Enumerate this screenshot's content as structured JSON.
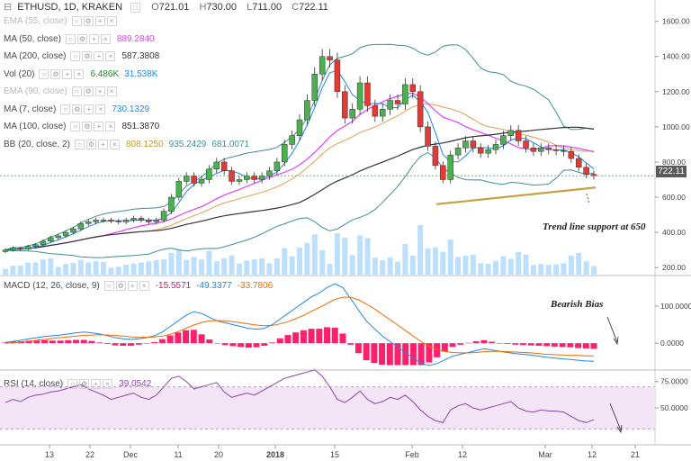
{
  "header": {
    "symbol": "ETHUSD, 1D, KRAKEN",
    "open_label": "O",
    "open": "721.01",
    "high_label": "H",
    "high": "730.00",
    "low_label": "L",
    "low": "711.00",
    "close_label": "C",
    "close": "722.11"
  },
  "legends": [
    {
      "name": "EMA (55, close)",
      "values": [],
      "dim": true
    },
    {
      "name": "MA (50, close)",
      "values": [
        "889.2840"
      ],
      "colors": [
        "#e040fb"
      ]
    },
    {
      "name": "MA (200, close)",
      "values": [
        "587.3808"
      ],
      "colors": [
        "#333333"
      ]
    },
    {
      "name": "Vol (20)",
      "values": [
        "6.486K",
        "31.538K"
      ],
      "colors": [
        "#2e7d32",
        "#1e88e5"
      ]
    },
    {
      "name": "EMA (90, close)",
      "values": [],
      "dim": true
    },
    {
      "name": "MA (7, close)",
      "values": [
        "730.1329"
      ],
      "colors": [
        "#1e88e5"
      ]
    },
    {
      "name": "MA (100, close)",
      "values": [
        "851.3870"
      ],
      "colors": [
        "#333333"
      ]
    },
    {
      "name": "BB (20, close, 2)",
      "values": [
        "808.1250",
        "935.2429",
        "681.0071"
      ],
      "colors": [
        "#c29a2f",
        "#3f8f8f",
        "#3f8f8f"
      ]
    }
  ],
  "macd_legend": {
    "name": "MACD (12, 26, close, 9)",
    "values": [
      "-15.5571",
      "-49.3377",
      "-33.7806"
    ],
    "colors": [
      "#d81b60",
      "#1e88e5",
      "#ef6c00"
    ]
  },
  "rsi_legend": {
    "name": "RSI (14, close)",
    "value": "39.0542"
  },
  "current_price_tag": "722.11",
  "annotations": {
    "trendline": "Trend line support at 650",
    "bias": "Bearish Bias"
  },
  "colors": {
    "up": "#4caf50",
    "down": "#e53935",
    "bb": "#3f8f8f",
    "ma50": "#e040fb",
    "ma200": "#333333",
    "ema": "#e0a050",
    "volume": "#90caf9",
    "macd_hist": "#ff1f6b",
    "macd": "#1e88e5",
    "signal": "#ef6c00",
    "rsi": "#8e44ad",
    "rsi_band": "#f3e5f5",
    "trendline": "#c8a040"
  },
  "chart_data": [
    {
      "type": "candlestick",
      "title": "ETHUSD, 1D, KRAKEN",
      "x_ticks": [
        "13",
        "22",
        "Dec",
        "11",
        "20",
        "2018",
        "15",
        "Feb",
        "12",
        "Mar",
        "12",
        "21"
      ],
      "y_ticks": [
        200,
        400,
        600,
        800,
        1000,
        1200,
        1400,
        1600
      ],
      "y_tick_labels": [
        "200.00",
        "400.00",
        "600.00",
        "800.00",
        "1000.00",
        "1200.00",
        "1400.00",
        "1600.00"
      ],
      "ylim": [
        160,
        1680
      ],
      "series": [
        {
          "name": "ETHUSD",
          "kind": "candles",
          "close": [
            300,
            310,
            305,
            320,
            330,
            350,
            370,
            380,
            400,
            420,
            450,
            460,
            470,
            470,
            465,
            460,
            470,
            480,
            470,
            460,
            470,
            520,
            600,
            690,
            720,
            680,
            700,
            760,
            800,
            750,
            690,
            700,
            720,
            700,
            720,
            750,
            800,
            900,
            950,
            1040,
            1150,
            1300,
            1400,
            1380,
            1200,
            1050,
            1100,
            1250,
            1120,
            1060,
            1100,
            1150,
            1130,
            1240,
            1200,
            1000,
            890,
            780,
            700,
            840,
            880,
            920,
            880,
            850,
            870,
            900,
            950,
            980,
            920,
            880,
            860,
            880,
            870,
            865,
            860,
            820,
            770,
            730,
            722
          ]
        }
      ]
    },
    {
      "type": "line",
      "title": "MACD (12, 26, close, 9)",
      "y_ticks": [
        0,
        100
      ],
      "y_tick_labels": [
        "0.0000",
        "100.0000"
      ],
      "ylim": [
        -70,
        180
      ],
      "series": [
        {
          "name": "MACD",
          "values": [
            2,
            5,
            8,
            12,
            15,
            18,
            20,
            22,
            25,
            28,
            30,
            28,
            25,
            20,
            15,
            12,
            10,
            12,
            15,
            20,
            30,
            45,
            60,
            75,
            85,
            80,
            70,
            60,
            55,
            50,
            45,
            40,
            38,
            40,
            50,
            65,
            80,
            95,
            110,
            125,
            135,
            150,
            160,
            150,
            120,
            90,
            60,
            40,
            20,
            5,
            -10,
            -25,
            -40,
            -55,
            -60,
            -55,
            -45,
            -35,
            -30,
            -25,
            -20,
            -15,
            -18,
            -22,
            -25,
            -28,
            -30,
            -32,
            -35,
            -38,
            -40,
            -42,
            -44,
            -46,
            -48,
            -49
          ]
        },
        {
          "name": "Signal",
          "values": [
            0,
            1,
            3,
            5,
            8,
            10,
            13,
            15,
            17,
            19,
            21,
            22,
            23,
            22,
            21,
            19,
            17,
            16,
            16,
            17,
            19,
            24,
            31,
            40,
            49,
            56,
            60,
            61,
            60,
            58,
            55,
            52,
            49,
            47,
            48,
            52,
            58,
            66,
            75,
            86,
            96,
            107,
            118,
            124,
            124,
            117,
            106,
            93,
            78,
            64,
            49,
            34,
            19,
            4,
            -8,
            -17,
            -22,
            -25,
            -26,
            -26,
            -25,
            -23,
            -22,
            -22,
            -23,
            -24,
            -25,
            -26,
            -28,
            -30,
            -31,
            -32,
            -33,
            -33,
            -34,
            -34
          ]
        },
        {
          "name": "Histogram",
          "values": [
            2,
            4,
            5,
            7,
            7,
            8,
            7,
            7,
            8,
            9,
            9,
            6,
            2,
            -2,
            -6,
            -7,
            -7,
            -4,
            -1,
            3,
            11,
            21,
            29,
            35,
            36,
            24,
            10,
            -1,
            -5,
            -8,
            -10,
            -12,
            -11,
            -7,
            2,
            13,
            22,
            29,
            35,
            39,
            39,
            43,
            42,
            26,
            -4,
            -27,
            -46,
            -53,
            -58,
            -59,
            -59,
            -59,
            -59,
            -59,
            -52,
            -38,
            -23,
            -10,
            -4,
            1,
            5,
            8,
            4,
            0,
            -2,
            -4,
            -5,
            -6,
            -7,
            -8,
            -9,
            -10,
            -11,
            -13,
            -14,
            -15
          ]
        }
      ]
    },
    {
      "type": "line",
      "title": "RSI (14, close)",
      "y_ticks": [
        50,
        75
      ],
      "y_tick_labels": [
        "50.0000",
        "75.0000"
      ],
      "ylim": [
        15,
        85
      ],
      "band": [
        30,
        70
      ],
      "series": [
        {
          "name": "RSI",
          "values": [
            55,
            58,
            56,
            60,
            62,
            63,
            65,
            66,
            68,
            70,
            72,
            68,
            65,
            62,
            58,
            60,
            62,
            64,
            60,
            58,
            62,
            70,
            78,
            80,
            75,
            68,
            70,
            72,
            74,
            65,
            60,
            62,
            64,
            62,
            66,
            70,
            74,
            78,
            80,
            82,
            84,
            86,
            80,
            70,
            58,
            55,
            60,
            66,
            58,
            54,
            56,
            60,
            58,
            62,
            56,
            48,
            42,
            38,
            36,
            48,
            52,
            54,
            50,
            48,
            50,
            52,
            54,
            56,
            50,
            47,
            46,
            48,
            47,
            47,
            46,
            42,
            38,
            36,
            39
          ]
        }
      ]
    }
  ]
}
